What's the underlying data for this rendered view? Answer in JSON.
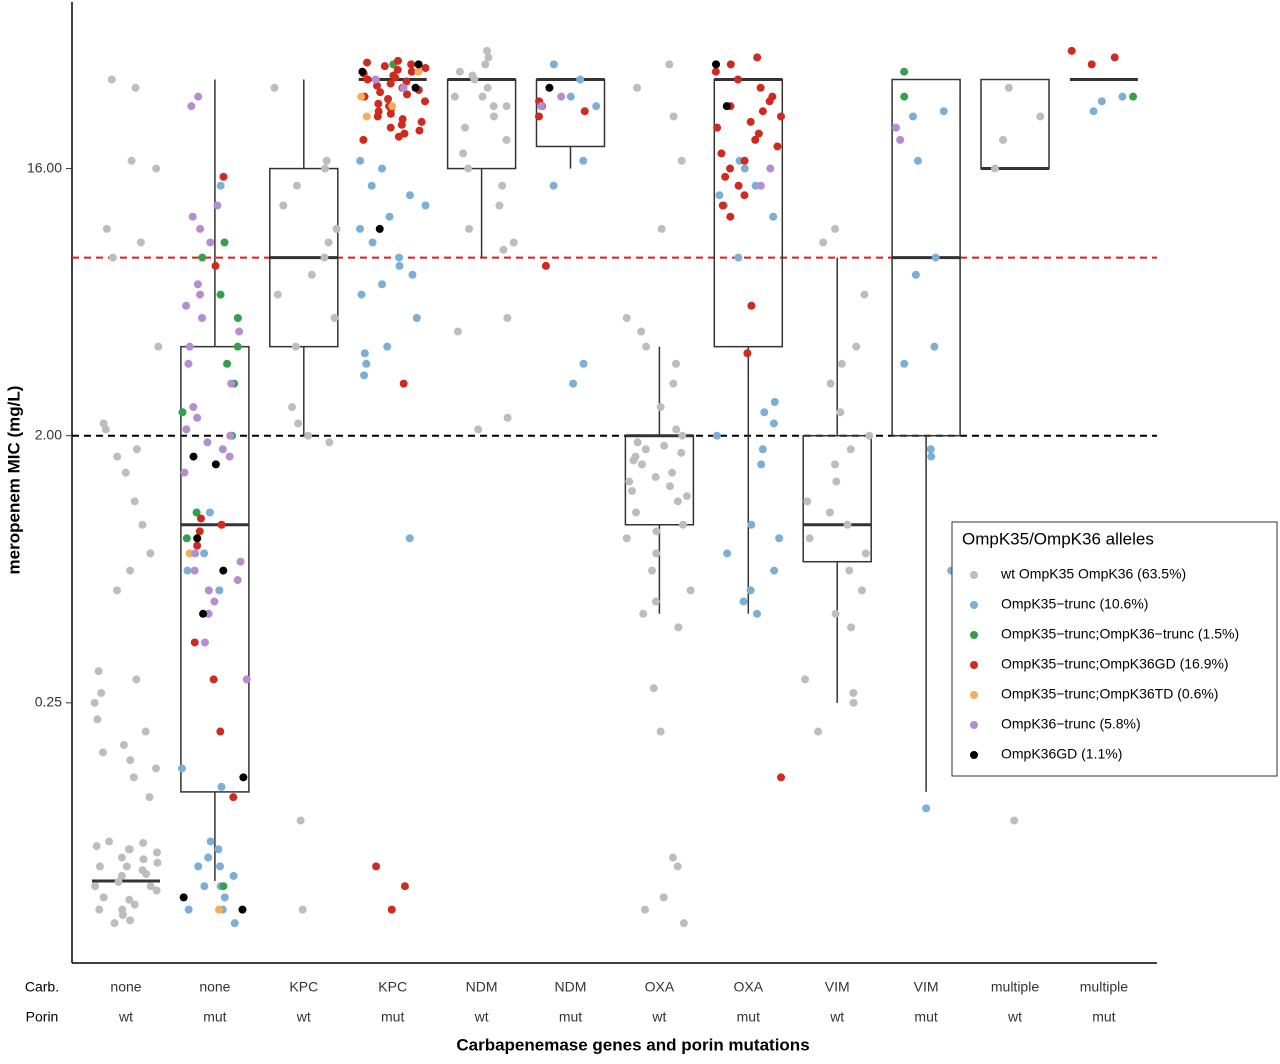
{
  "chart_data": {
    "type": "box-jitter",
    "y_label": "meropenem MIC (mg/L)",
    "x_label": "Carbapenemase genes and porin mutations",
    "row_labels": [
      "Carb.",
      "Porin"
    ],
    "carb": [
      "none",
      "none",
      "KPC",
      "KPC",
      "NDM",
      "NDM",
      "OXA",
      "OXA",
      "VIM",
      "VIM",
      "multiple",
      "multiple"
    ],
    "porin": [
      "wt",
      "mut",
      "wt",
      "mut",
      "wt",
      "mut",
      "wt",
      "mut",
      "wt",
      "mut",
      "wt",
      "mut"
    ],
    "log_scale": true,
    "ylim": [
      0.033,
      58.5
    ],
    "yticks": [
      0.25,
      {
        "value": 2,
        "label": "2.00"
      },
      {
        "value": 16,
        "label": "16.00"
      }
    ],
    "hlines": [
      {
        "value": 8,
        "color": "#e41a1c"
      },
      {
        "value": 2,
        "color": "#000000"
      }
    ],
    "boxes": [
      {
        "low": 0.0625,
        "q1": 0.0625,
        "median": 0.0625,
        "q3": 0.0625,
        "high": 0.0625
      },
      {
        "low": 0.0625,
        "q1": 0.125,
        "median": 1,
        "q3": 4,
        "high": 32
      },
      {
        "low": 2,
        "q1": 4,
        "median": 8,
        "q3": 16,
        "high": 32
      },
      {
        "low": 32,
        "q1": 32,
        "median": 32,
        "q3": 32,
        "high": 32
      },
      {
        "low": 8,
        "q1": 16,
        "median": 32,
        "q3": 32,
        "high": 32
      },
      {
        "low": 16,
        "q1": 19,
        "median": 32,
        "q3": 32,
        "high": 32
      },
      {
        "low": 0.5,
        "q1": 1,
        "median": 2,
        "q3": 2,
        "high": 4
      },
      {
        "low": 0.5,
        "q1": 4,
        "median": 32,
        "q3": 32,
        "high": 32
      },
      {
        "low": 0.25,
        "q1": 0.75,
        "median": 1,
        "q3": 2,
        "high": 8
      },
      {
        "low": 0.125,
        "q1": 2,
        "median": 8,
        "q3": 32,
        "high": 32
      },
      {
        "low": 16,
        "q1": 16,
        "median": 16,
        "q3": 32,
        "high": 32
      },
      {
        "low": 32,
        "q1": 32,
        "median": 32,
        "q3": 32,
        "high": 32
      }
    ],
    "legend_title": "OmpK35/OmpK36 alleles",
    "series": [
      {
        "name": "wt OmpK35 OmpK36  (63.5%)",
        "color": "#bdbdbd",
        "values": [
          [
            0.045,
            0.05,
            0.055,
            0.06,
            0.065,
            0.07,
            0.075,
            0.08,
            0.085,
            0.048,
            0.052,
            0.058,
            0.062,
            0.068,
            0.072,
            0.078,
            0.082,
            0.046,
            0.054,
            0.066,
            0.074,
            0.084,
            0.05,
            0.06,
            0.07,
            0.08,
            0.12,
            0.14,
            0.15,
            0.16,
            0.17,
            0.18,
            0.2,
            0.22,
            0.25,
            0.27,
            0.3,
            0.32,
            0.6,
            0.7,
            0.8,
            1,
            1.2,
            1.5,
            1.7,
            1.8,
            2.1,
            2.2,
            4,
            8,
            9,
            10,
            16,
            17,
            30,
            32
          ],
          [],
          [
            0.05,
            0.1,
            1.9,
            2,
            2.2,
            2.5,
            4,
            5,
            6,
            7,
            8,
            9,
            10,
            12,
            14,
            16,
            17,
            30
          ],
          [],
          [
            2.1,
            2.3,
            4.5,
            5,
            8.5,
            9,
            10,
            12,
            14,
            16,
            18,
            20,
            22,
            24,
            26,
            28,
            30,
            32,
            34,
            36,
            38,
            40,
            28,
            33,
            26
          ],
          [],
          [
            0.045,
            0.05,
            0.055,
            0.07,
            0.075,
            0.2,
            0.28,
            0.45,
            0.5,
            0.55,
            0.6,
            0.7,
            0.8,
            0.9,
            1,
            1.1,
            1.2,
            1.3,
            1.4,
            1.5,
            1.6,
            1.7,
            1.8,
            1.9,
            2,
            2.1,
            1.25,
            1.35,
            1.45,
            1.65,
            1.75,
            1.85,
            0.95,
            2.5,
            3,
            3.5,
            4,
            4.5,
            5,
            10,
            17,
            24,
            30,
            36
          ],
          [],
          [
            0.25,
            0.27,
            0.3,
            0.2,
            0.45,
            0.5,
            0.6,
            0.7,
            0.8,
            0.9,
            1,
            1.1,
            1.2,
            1.4,
            1.6,
            1.8,
            2,
            2.4,
            3,
            3.5,
            4,
            6,
            9,
            10
          ],
          [],
          [
            0.1,
            16,
            20,
            24,
            30
          ],
          []
        ]
      },
      {
        "name": "OmpK35−trunc (10.6%)",
        "color": "#7bafd6",
        "values": [
          [],
          [
            0.045,
            0.05,
            0.055,
            0.06,
            0.065,
            0.07,
            0.075,
            0.08,
            0.085,
            0.05,
            0.06,
            0.07,
            0.13,
            0.15,
            0.5,
            0.6,
            0.7,
            0.8,
            1.1,
            14
          ],
          [],
          [
            0.9,
            3.5,
            3.8,
            4,
            5,
            6,
            6.5,
            7,
            8,
            9,
            10,
            11,
            12,
            13,
            14,
            16,
            17,
            3.2,
            7.5
          ],
          [],
          [
            3,
            3.5,
            14,
            17,
            26,
            28,
            32,
            36
          ],
          [],
          [
            0.5,
            0.55,
            0.6,
            0.7,
            0.8,
            0.9,
            1,
            1.6,
            1.8,
            2,
            2.2,
            2.4,
            2.6,
            8,
            11,
            12,
            13,
            14,
            16,
            17
          ],
          [],
          [
            0.11,
            0.7,
            1.7,
            1.8,
            3.5,
            4,
            7,
            8,
            17,
            24,
            25
          ],
          [],
          [
            27,
            28,
            25
          ]
        ]
      },
      {
        "name": "OmpK35−trunc;OmpK36−trunc (1.5%)",
        "color": "#33a04a",
        "values": [
          [],
          [
            0.06,
            0.9,
            1.1,
            2,
            2.4,
            3,
            3.5,
            4,
            5,
            6,
            8,
            9
          ],
          [],
          [
            36
          ],
          [],
          [],
          [],
          [],
          [],
          [
            28,
            34
          ],
          [],
          [
            28
          ]
        ]
      },
      {
        "name": "OmpK35−trunc;OmpK36GD (16.9%)",
        "color": "#cf2a20",
        "values": [
          [],
          [
            0.12,
            0.2,
            0.3,
            0.4,
            0.85,
            0.95,
            1,
            1.05,
            7.5,
            15
          ],
          [],
          [
            20,
            21,
            22,
            23,
            24,
            25,
            26,
            27,
            28,
            29,
            30,
            31,
            32,
            33,
            34,
            35,
            36,
            37,
            20.5,
            22.5,
            24.5,
            26.5,
            28.5,
            30.5,
            32.5,
            34.5,
            36.5,
            21.5,
            23.5,
            25.5,
            27.5,
            29.5,
            31.5,
            33.5,
            35.5,
            3,
            0.07,
            0.06,
            0.05
          ],
          [],
          [
            24,
            25,
            26,
            27,
            7.5
          ],
          [],
          [
            0.14,
            3.8,
            5.5,
            11,
            12,
            13,
            14,
            15,
            16,
            17,
            18,
            19,
            20,
            21,
            22,
            23,
            24,
            26,
            28,
            30,
            32,
            34,
            36,
            38,
            25,
            27
          ],
          [],
          [],
          [],
          [
            36,
            38,
            40
          ]
        ]
      },
      {
        "name": "OmpK35−trunc;OmpK36TD (0.6%)",
        "color": "#f4ae5a",
        "values": [
          [],
          [
            0.05,
            0.8
          ],
          [],
          [
            24,
            26,
            28,
            34
          ],
          [],
          [],
          [],
          [],
          [],
          [],
          [],
          []
        ]
      },
      {
        "name": "OmpK36−trunc (5.8%)",
        "color": "#b48ed0",
        "values": [
          [],
          [
            0.3,
            0.4,
            0.5,
            0.55,
            0.6,
            0.65,
            0.7,
            0.75,
            0.8,
            1.5,
            1.7,
            1.8,
            1.9,
            2,
            2.1,
            2.3,
            2.5,
            3,
            3.5,
            4,
            4.5,
            5,
            5.5,
            6,
            6.5,
            9,
            10,
            11,
            12,
            26,
            28
          ],
          [],
          [
            30,
            32
          ],
          [],
          [
            26,
            28
          ],
          [],
          [
            14,
            16
          ],
          [],
          [
            20,
            22
          ],
          [],
          []
        ]
      },
      {
        "name": "OmpK36GD (1.1%)",
        "color": "#000000",
        "values": [
          [],
          [
            0.05,
            0.055,
            0.14,
            0.5,
            0.7,
            0.9,
            1.6,
            1.7
          ],
          [],
          [
            10,
            30,
            34,
            36
          ],
          [],
          [
            30
          ],
          [],
          [
            26,
            36
          ],
          [],
          [],
          [],
          []
        ]
      }
    ]
  }
}
